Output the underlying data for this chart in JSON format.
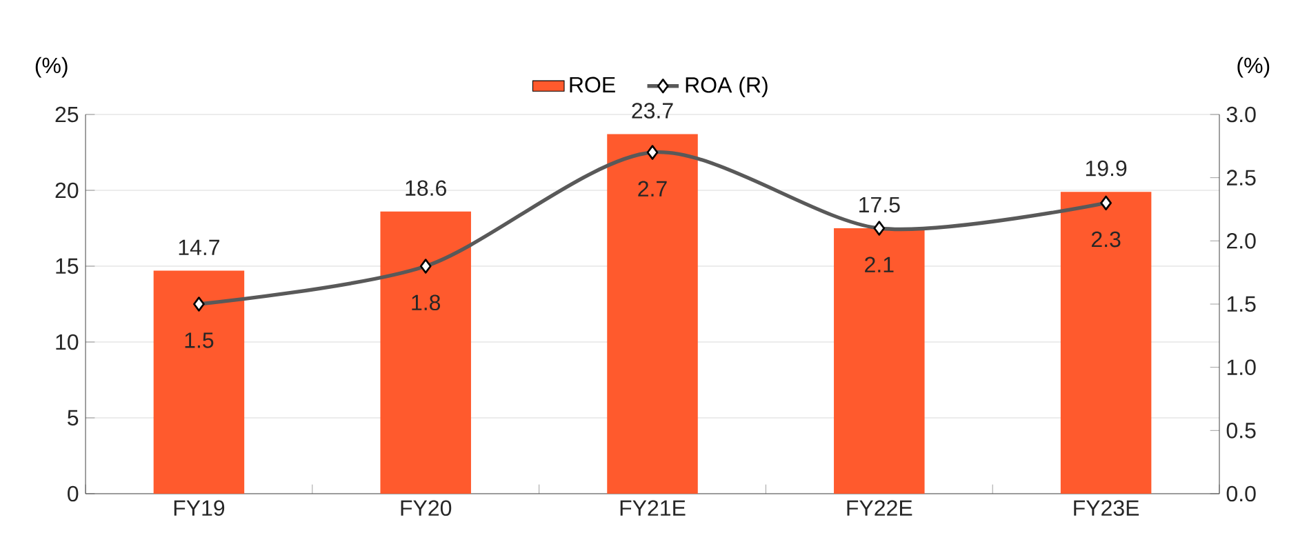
{
  "chart_data": {
    "type": "bar",
    "ylabel": "(%)",
    "y2label": "(%)",
    "categories": [
      "FY19",
      "FY20",
      "FY21E",
      "FY22E",
      "FY23E"
    ],
    "series": [
      {
        "name": "ROE",
        "color": "#ff5a2d",
        "values": [
          14.7,
          18.6,
          23.7,
          17.5,
          19.9
        ]
      },
      {
        "name": "ROA (R)",
        "type": "line",
        "axis": "y2",
        "marker": "diamond",
        "color": "#595959",
        "values": [
          1.5,
          1.8,
          2.7,
          2.1,
          2.3
        ]
      }
    ],
    "ylim": [
      0,
      25
    ],
    "yticks": [
      0,
      5,
      10,
      15,
      20,
      25
    ],
    "y2lim": [
      0,
      3
    ],
    "y2ticks": [
      {
        "value": 0,
        "label": "0.0"
      },
      {
        "value": 0.5,
        "label": "0.5"
      },
      {
        "value": 1,
        "label": "1.0"
      },
      {
        "value": 1.5,
        "label": "1.5"
      },
      {
        "value": 2,
        "label": "2.0"
      },
      {
        "value": 2.5,
        "label": "2.5"
      },
      {
        "value": 3,
        "label": "3.0"
      }
    ],
    "grid": "y",
    "legend": "top",
    "data_labels": true
  }
}
